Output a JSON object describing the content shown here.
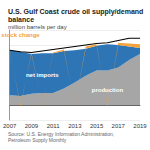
{
  "chart_data": {
    "type": "area",
    "title": "U.S. Gulf Coast crude oil supply/demand balance",
    "subtitle": "million barrels per day",
    "source": "Source: U.S. Energy Information Administration, Petroleum Supply Monthly",
    "categories": [
      "2007",
      null,
      "2009",
      null,
      "2011",
      null,
      "2013",
      null,
      "2015",
      null,
      "2017",
      null,
      "2019"
    ],
    "series": [
      {
        "name": "production",
        "color": "#a6a6a6",
        "values": [
          1.3,
          1.2,
          1.5,
          1.6,
          1.6,
          2.2,
          3.0,
          3.9,
          4.6,
          4.6,
          5.0,
          6.0,
          6.8
        ]
      },
      {
        "name": "net imports",
        "color": "#2e75b6",
        "values": [
          6.0,
          5.9,
          5.3,
          5.3,
          5.3,
          5.0,
          4.3,
          3.6,
          3.3,
          3.5,
          3.0,
          1.8,
          0.8
        ]
      },
      {
        "name": "stock change",
        "color": "#f4a23c",
        "values": [
          0.1,
          -0.2,
          0.2,
          -0.1,
          0.1,
          0.2,
          -0.1,
          0.3,
          0.2,
          -0.2,
          0.3,
          0.4,
          0.5
        ]
      },
      {
        "type": "line",
        "color": "#000000",
        "values": [
          7.3,
          7.1,
          7.0,
          7.2,
          7.4,
          7.6,
          7.8,
          8.0,
          8.2,
          8.3,
          8.6,
          8.9,
          8.9
        ]
      }
    ],
    "ylim": [
      -2,
      10
    ],
    "yticks": [
      -2,
      0,
      2,
      4,
      6,
      8,
      10
    ],
    "stacked": true,
    "grid": true,
    "tick_labels": "x"
  }
}
